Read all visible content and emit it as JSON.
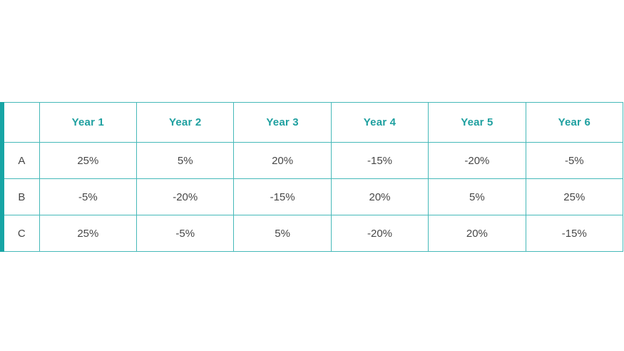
{
  "colors": {
    "accent_bar": "#17a5a5",
    "grid_border": "#46b9b9",
    "header_text": "#1fa0a0",
    "body_text": "#474747",
    "background": "#ffffff"
  },
  "table": {
    "corner_label": "",
    "columns": [
      "Year 1",
      "Year 2",
      "Year 3",
      "Year 4",
      "Year 5",
      "Year 6"
    ],
    "rows": [
      {
        "label": "A",
        "values": [
          "25%",
          "5%",
          "20%",
          "-15%",
          "-20%",
          "-5%"
        ]
      },
      {
        "label": "B",
        "values": [
          "-5%",
          "-20%",
          "-15%",
          "20%",
          "5%",
          "25%"
        ]
      },
      {
        "label": "C",
        "values": [
          "25%",
          "-5%",
          "5%",
          "-20%",
          "20%",
          "-15%"
        ]
      }
    ]
  },
  "chart_data": {
    "type": "table",
    "title": "",
    "categories": [
      "Year 1",
      "Year 2",
      "Year 3",
      "Year 4",
      "Year 5",
      "Year 6"
    ],
    "series": [
      {
        "name": "A",
        "values": [
          25,
          5,
          20,
          -15,
          -20,
          -5
        ]
      },
      {
        "name": "B",
        "values": [
          -5,
          -20,
          -15,
          20,
          5,
          25
        ]
      },
      {
        "name": "C",
        "values": [
          25,
          -5,
          5,
          -20,
          20,
          -15
        ]
      }
    ],
    "value_unit": "%"
  }
}
